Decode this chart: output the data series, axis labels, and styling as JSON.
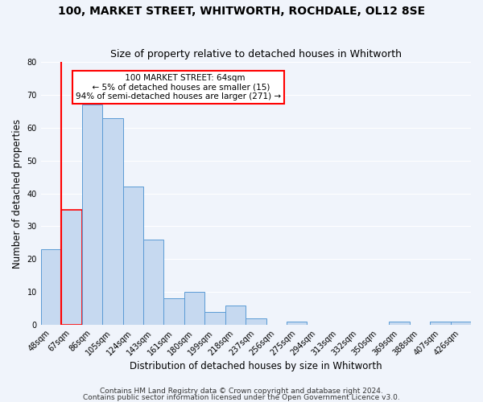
{
  "title": "100, MARKET STREET, WHITWORTH, ROCHDALE, OL12 8SE",
  "subtitle": "Size of property relative to detached houses in Whitworth",
  "xlabel": "Distribution of detached houses by size in Whitworth",
  "ylabel": "Number of detached properties",
  "bar_labels": [
    "48sqm",
    "67sqm",
    "86sqm",
    "105sqm",
    "124sqm",
    "143sqm",
    "161sqm",
    "180sqm",
    "199sqm",
    "218sqm",
    "237sqm",
    "256sqm",
    "275sqm",
    "294sqm",
    "313sqm",
    "332sqm",
    "350sqm",
    "369sqm",
    "388sqm",
    "407sqm",
    "426sqm"
  ],
  "bar_values": [
    23,
    35,
    67,
    63,
    42,
    26,
    8,
    10,
    4,
    6,
    2,
    0,
    1,
    0,
    0,
    0,
    0,
    1,
    0,
    1,
    1
  ],
  "bar_color": "#c6d9f0",
  "bar_edge_color": "#5b9bd5",
  "highlight_bar_index": 1,
  "highlight_edge_color": "#ff0000",
  "annotation_title": "100 MARKET STREET: 64sqm",
  "annotation_line1": "← 5% of detached houses are smaller (15)",
  "annotation_line2": "94% of semi-detached houses are larger (271) →",
  "annotation_box_color": "#ffffff",
  "annotation_box_edge_color": "#ff0000",
  "ylim": [
    0,
    80
  ],
  "yticks": [
    0,
    10,
    20,
    30,
    40,
    50,
    60,
    70,
    80
  ],
  "footer1": "Contains HM Land Registry data © Crown copyright and database right 2024.",
  "footer2": "Contains public sector information licensed under the Open Government Licence v3.0.",
  "background_color": "#f0f4fb",
  "grid_color": "#ffffff",
  "title_fontsize": 10,
  "subtitle_fontsize": 9,
  "axis_label_fontsize": 8.5,
  "tick_fontsize": 7,
  "annotation_fontsize": 7.5,
  "footer_fontsize": 6.5
}
